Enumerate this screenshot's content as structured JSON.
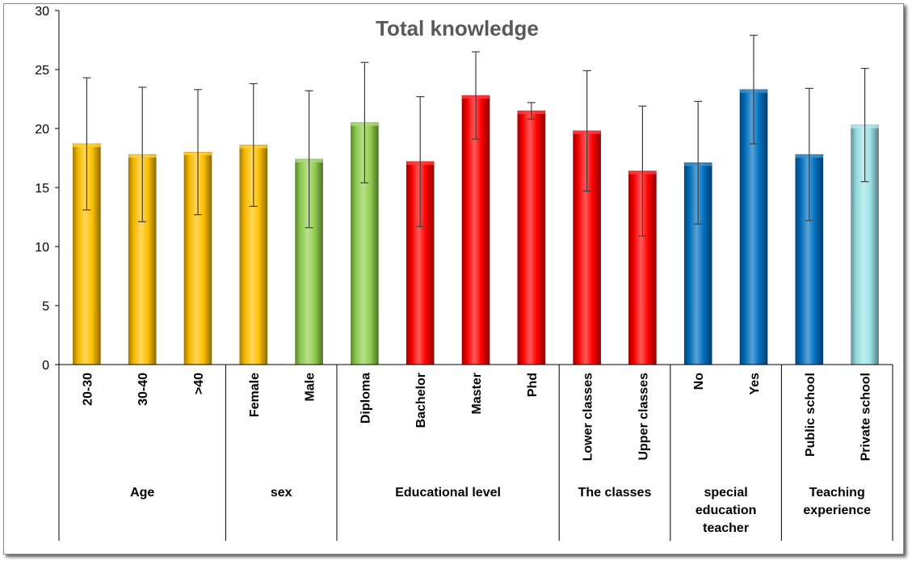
{
  "chart_data": {
    "type": "bar",
    "title": "Total knowledge",
    "xlabel": "",
    "ylabel": "",
    "ylim": [
      0,
      30
    ],
    "yticks": [
      0,
      5,
      10,
      15,
      20,
      25,
      30
    ],
    "grid": false,
    "legend": "none",
    "error_bars": true,
    "groups": [
      {
        "label": [
          "Age"
        ],
        "start": 0,
        "count": 3
      },
      {
        "label": [
          "sex"
        ],
        "start": 3,
        "count": 2
      },
      {
        "label": [
          "Educational level"
        ],
        "start": 5,
        "count": 4
      },
      {
        "label": [
          "The classes"
        ],
        "start": 9,
        "count": 2
      },
      {
        "label": [
          "special",
          "education",
          "teacher"
        ],
        "start": 11,
        "count": 2
      },
      {
        "label": [
          "Teaching",
          "experience"
        ],
        "start": 13,
        "count": 2
      }
    ],
    "categories": [
      "20-30",
      "30-40",
      ">40",
      "Female",
      "Male",
      "Diploma",
      "Bachelor",
      "Master",
      "Phd",
      "Lower classes",
      "Upper classes",
      "No",
      "Yes",
      "Public school",
      "Private school"
    ],
    "values": [
      18.7,
      17.8,
      18.0,
      18.6,
      17.4,
      20.5,
      17.2,
      22.8,
      21.5,
      19.8,
      16.4,
      17.1,
      23.3,
      17.8,
      20.3
    ],
    "errors": [
      5.6,
      5.7,
      5.3,
      5.2,
      5.8,
      5.1,
      5.5,
      3.7,
      0.7,
      5.1,
      5.5,
      5.2,
      4.6,
      5.6,
      4.8
    ],
    "colors": [
      "#FFC000",
      "#FFC000",
      "#FFC000",
      "#FFC000",
      "#92D050",
      "#92D050",
      "#FF0000",
      "#FF0000",
      "#FF0000",
      "#FF0000",
      "#FF0000",
      "#0070C0",
      "#0070C0",
      "#0070C0",
      "#9BE3E8"
    ]
  }
}
